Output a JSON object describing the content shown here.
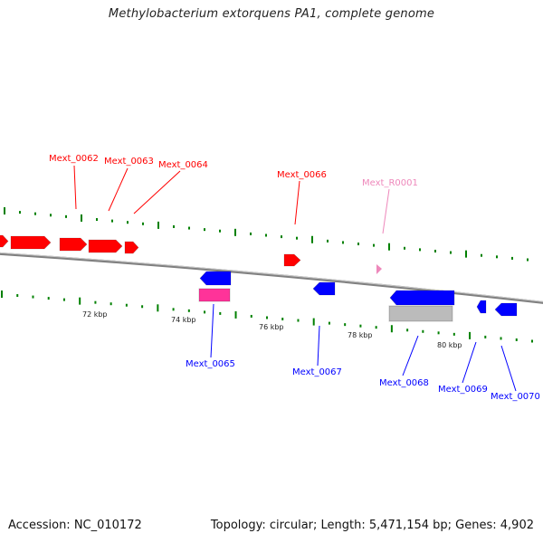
{
  "title": "Methylobacterium extorquens PA1, complete genome",
  "footer": {
    "accession": "Accession: NC_010172",
    "summary": "Topology: circular; Length: 5,471,154 bp; Genes: 4,902"
  },
  "colors": {
    "forward_gene": "#ff0000",
    "reverse_gene": "#0000ff",
    "rna": "#ee88bb",
    "ticks": "#008000",
    "backbone": "#808080",
    "cds_track": "#ff3399",
    "region_track": "#bbbbbb"
  },
  "scale_labels": [
    "72 kbp",
    "74 kbp",
    "76 kbp",
    "78 kbp",
    "80 kbp"
  ],
  "features": [
    {
      "name": "Mext_0062",
      "strand": "+",
      "color": "forward_gene"
    },
    {
      "name": "Mext_0063",
      "strand": "+",
      "color": "forward_gene"
    },
    {
      "name": "Mext_0064",
      "strand": "+",
      "color": "forward_gene"
    },
    {
      "name": "Mext_0066",
      "strand": "+",
      "color": "forward_gene"
    },
    {
      "name": "Mext_R0001",
      "strand": "+",
      "color": "rna"
    },
    {
      "name": "Mext_0065",
      "strand": "-",
      "color": "reverse_gene"
    },
    {
      "name": "Mext_0067",
      "strand": "-",
      "color": "reverse_gene"
    },
    {
      "name": "Mext_0068",
      "strand": "-",
      "color": "reverse_gene"
    },
    {
      "name": "Mext_0069",
      "strand": "-",
      "color": "reverse_gene"
    },
    {
      "name": "Mext_0070",
      "strand": "-",
      "color": "reverse_gene"
    }
  ]
}
